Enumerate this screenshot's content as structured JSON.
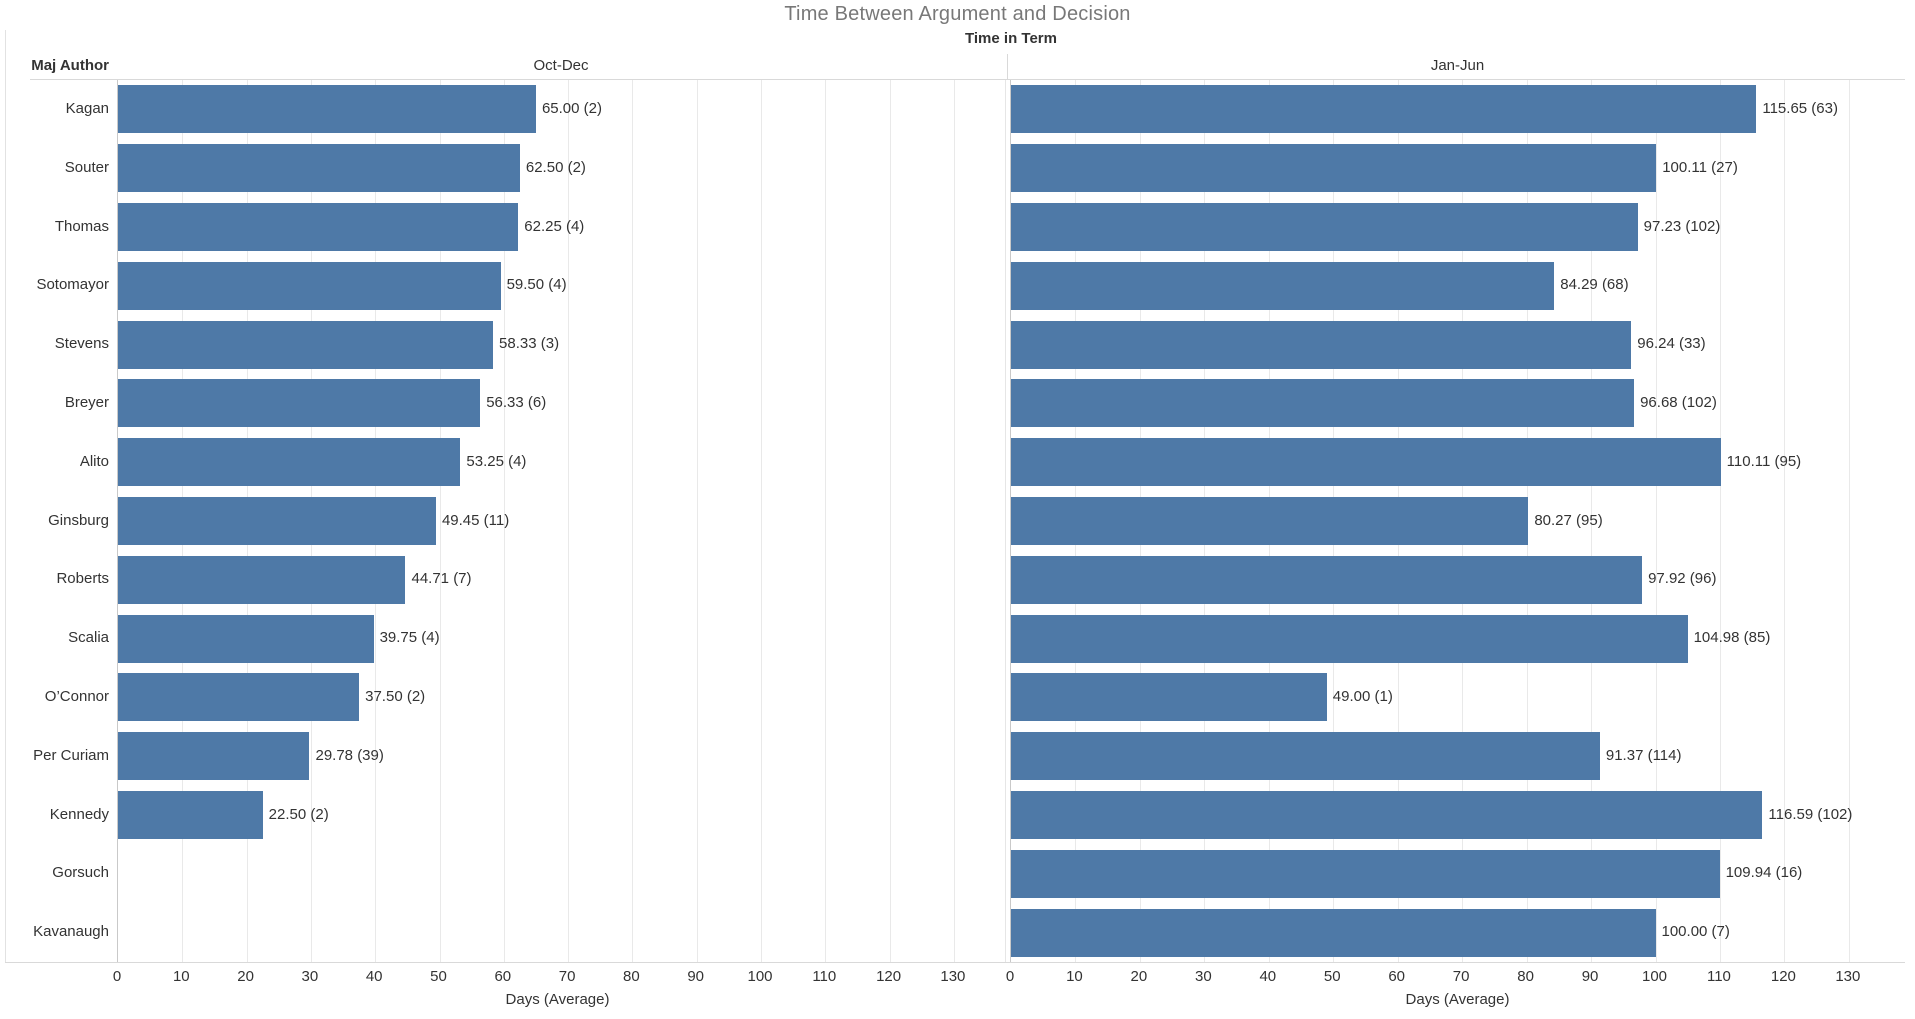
{
  "title": "Time Between Argument and Decision",
  "chart_data": {
    "type": "bar",
    "orientation": "horizontal",
    "column_header": "Time in Term",
    "row_header": "Maj Author",
    "categories": [
      "Kagan",
      "Souter",
      "Thomas",
      "Sotomayor",
      "Stevens",
      "Breyer",
      "Alito",
      "Ginsburg",
      "Roberts",
      "Scalia",
      "O’Connor",
      "Per Curiam",
      "Kennedy",
      "Gorsuch",
      "Kavanaugh"
    ],
    "panels": [
      {
        "name": "Oct-Dec",
        "xlabel": "Days (Average)",
        "sort_icon": true
      },
      {
        "name": "Jan-Jun",
        "xlabel": "Days (Average)",
        "sort_icon": false
      }
    ],
    "series": [
      {
        "name": "Oct-Dec",
        "values": [
          65.0,
          62.5,
          62.25,
          59.5,
          58.33,
          56.33,
          53.25,
          49.45,
          44.71,
          39.75,
          37.5,
          29.78,
          22.5,
          null,
          null
        ],
        "labels": [
          "65.00 (2)",
          "62.50 (2)",
          "62.25 (4)",
          "59.50 (4)",
          "58.33 (3)",
          "56.33 (6)",
          "53.25 (4)",
          "49.45 (11)",
          "44.71 (7)",
          "39.75 (4)",
          "37.50 (2)",
          "29.78 (39)",
          "22.50 (2)",
          "",
          ""
        ]
      },
      {
        "name": "Jan-Jun",
        "values": [
          115.65,
          100.11,
          97.23,
          84.29,
          96.24,
          96.68,
          110.11,
          80.27,
          97.92,
          104.98,
          49.0,
          91.37,
          116.59,
          109.94,
          100.0
        ],
        "labels": [
          "115.65 (63)",
          "100.11 (27)",
          "97.23 (102)",
          "84.29 (68)",
          "96.24 (33)",
          "96.68 (102)",
          "110.11 (95)",
          "80.27 (95)",
          "97.92 (96)",
          "104.98 (85)",
          "49.00 (1)",
          "91.37 (114)",
          "116.59 (102)",
          "109.94 (16)",
          "100.00 (7)"
        ]
      }
    ],
    "x_ticks": [
      0,
      10,
      20,
      30,
      40,
      50,
      60,
      70,
      80,
      90,
      100,
      110,
      120,
      130
    ],
    "xlim": [
      0,
      138
    ],
    "grid": true,
    "legend": "none",
    "bar_color": "#4e79a7"
  }
}
